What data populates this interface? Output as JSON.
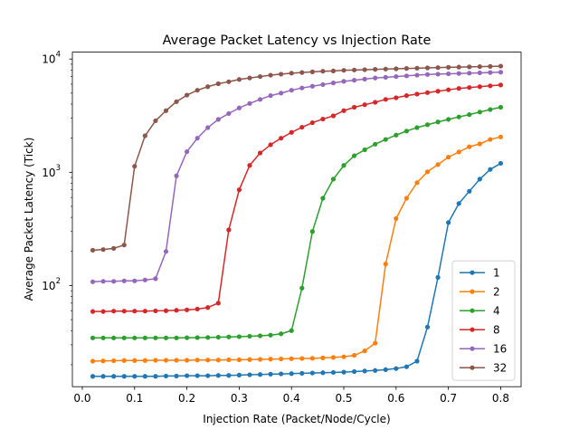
{
  "chart_data": {
    "type": "line",
    "title": "Average Packet Latency vs Injection Rate",
    "xlabel": "Injection Rate (Packet/Node/Cycle)",
    "ylabel": "Average Packet Latency (Tick)",
    "yscale": "log",
    "xlim": [
      -0.019,
      0.839
    ],
    "ylim": [
      12.8,
      11500
    ],
    "xticks": [
      0.0,
      0.1,
      0.2,
      0.3,
      0.4,
      0.5,
      0.6,
      0.7,
      0.8
    ],
    "xtick_labels": [
      "0.0",
      "0.1",
      "0.2",
      "0.3",
      "0.4",
      "0.5",
      "0.6",
      "0.7",
      "0.8"
    ],
    "yticks": [
      {
        "value": 100,
        "base": "10",
        "exp": "2"
      },
      {
        "value": 1000,
        "base": "10",
        "exp": "3"
      },
      {
        "value": 10000,
        "base": "10",
        "exp": "4"
      }
    ],
    "grid": false,
    "legend_position": "lower-right",
    "x": [
      0.02,
      0.04,
      0.06,
      0.08,
      0.1,
      0.12,
      0.14,
      0.16,
      0.18,
      0.2,
      0.22,
      0.24,
      0.26,
      0.28,
      0.3,
      0.32,
      0.34,
      0.36,
      0.38,
      0.4,
      0.42,
      0.44,
      0.46,
      0.48,
      0.5,
      0.52,
      0.54,
      0.56,
      0.58,
      0.6,
      0.62,
      0.64,
      0.66,
      0.68,
      0.7,
      0.72,
      0.74,
      0.76,
      0.78,
      0.8
    ],
    "series": [
      {
        "name": "1",
        "color": "#1f77b4",
        "values": [
          15.8,
          15.8,
          15.8,
          15.8,
          15.8,
          15.8,
          15.8,
          15.9,
          15.9,
          16.0,
          16.0,
          16.0,
          16.1,
          16.1,
          16.2,
          16.3,
          16.4,
          16.5,
          16.6,
          16.7,
          16.8,
          16.9,
          17.0,
          17.1,
          17.2,
          17.4,
          17.6,
          17.8,
          18.1,
          18.5,
          19.2,
          21.5,
          43,
          118,
          360,
          530,
          680,
          870,
          1060,
          1200
        ]
      },
      {
        "name": "2",
        "color": "#ff7f0e",
        "values": [
          21.5,
          21.6,
          21.7,
          21.8,
          21.8,
          21.8,
          21.9,
          21.9,
          21.9,
          21.9,
          22.0,
          22.0,
          22.0,
          22.1,
          22.1,
          22.2,
          22.3,
          22.4,
          22.5,
          22.6,
          22.7,
          22.8,
          23.0,
          23.2,
          23.5,
          24.2,
          26.5,
          31,
          155,
          390,
          590,
          810,
          1010,
          1170,
          1360,
          1510,
          1680,
          1780,
          1950,
          2050
        ]
      },
      {
        "name": "4",
        "color": "#2ca02c",
        "values": [
          34.5,
          34.5,
          34.5,
          34.5,
          34.5,
          34.5,
          34.5,
          34.5,
          34.5,
          34.6,
          34.7,
          34.8,
          35.0,
          35.2,
          35.4,
          35.7,
          36.0,
          36.5,
          37.5,
          40,
          95,
          300,
          590,
          870,
          1150,
          1400,
          1580,
          1770,
          1950,
          2130,
          2310,
          2480,
          2630,
          2780,
          2930,
          3080,
          3230,
          3400,
          3580,
          3750
        ]
      },
      {
        "name": "8",
        "color": "#d62728",
        "values": [
          59,
          59,
          59.5,
          59.5,
          59.5,
          59.5,
          59.8,
          60,
          60.5,
          61,
          62,
          64,
          70,
          310,
          700,
          1150,
          1480,
          1750,
          2000,
          2250,
          2500,
          2740,
          2950,
          3150,
          3500,
          3750,
          3950,
          4150,
          4400,
          4550,
          4750,
          4900,
          5050,
          5200,
          5350,
          5500,
          5600,
          5700,
          5800,
          5900
        ]
      },
      {
        "name": "16",
        "color": "#9467bd",
        "values": [
          108,
          109,
          109,
          110,
          110,
          112,
          115,
          200,
          930,
          1520,
          2000,
          2480,
          2930,
          3300,
          3700,
          4050,
          4400,
          4750,
          5000,
          5300,
          5550,
          5750,
          5950,
          6150,
          6350,
          6500,
          6650,
          6800,
          6900,
          7000,
          7100,
          7200,
          7300,
          7350,
          7400,
          7450,
          7500,
          7550,
          7600,
          7650
        ]
      },
      {
        "name": "32",
        "color": "#8c564b",
        "values": [
          205,
          208,
          213,
          228,
          1130,
          2100,
          2850,
          3500,
          4200,
          4800,
          5300,
          5700,
          6050,
          6300,
          6600,
          6800,
          7000,
          7200,
          7350,
          7500,
          7600,
          7700,
          7800,
          7850,
          7950,
          8000,
          8050,
          8100,
          8150,
          8200,
          8250,
          8300,
          8350,
          8400,
          8450,
          8480,
          8520,
          8560,
          8600,
          8650
        ]
      }
    ]
  }
}
